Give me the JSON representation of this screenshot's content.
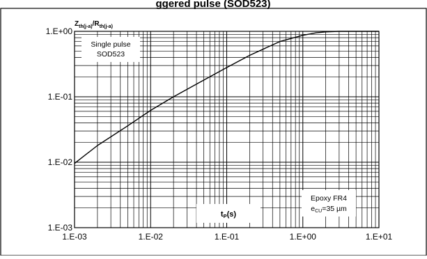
{
  "figure": {
    "top_heading": "ggered pulse (SOD523)",
    "panel_label": "Z",
    "panel_label_sub_1": "th(j-a)",
    "panel_label_mid": "/R",
    "panel_label_sub_2": "th(j-a)"
  },
  "chart_data": {
    "type": "line",
    "title": "",
    "xlabel_main": "t",
    "xlabel_sub": "P",
    "xlabel_unit": "(s)",
    "x_scale": "log",
    "y_scale": "log",
    "xlim": [
      0.001,
      10
    ],
    "ylim": [
      0.001,
      1
    ],
    "x_ticks": [
      {
        "value": 0.001,
        "label": "1.E-03"
      },
      {
        "value": 0.01,
        "label": "1.E-02"
      },
      {
        "value": 0.1,
        "label": "1.E-01"
      },
      {
        "value": 1,
        "label": "1.E+00"
      },
      {
        "value": 10,
        "label": "1.E+01"
      }
    ],
    "y_ticks": [
      {
        "value": 0.001,
        "label": "1.E-03"
      },
      {
        "value": 0.01,
        "label": "1.E-02"
      },
      {
        "value": 0.1,
        "label": "1.E-01"
      },
      {
        "value": 1,
        "label": "1.E+00"
      }
    ],
    "grid": true,
    "series": [
      {
        "color": "#000000",
        "points": [
          {
            "x": 0.001,
            "y": 0.0096
          },
          {
            "x": 0.002,
            "y": 0.018
          },
          {
            "x": 0.005,
            "y": 0.036
          },
          {
            "x": 0.01,
            "y": 0.062
          },
          {
            "x": 0.02,
            "y": 0.1
          },
          {
            "x": 0.05,
            "y": 0.18
          },
          {
            "x": 0.1,
            "y": 0.28
          },
          {
            "x": 0.2,
            "y": 0.43
          },
          {
            "x": 0.5,
            "y": 0.7
          },
          {
            "x": 1,
            "y": 0.87
          },
          {
            "x": 1.5,
            "y": 0.95
          },
          {
            "x": 2,
            "y": 0.98
          },
          {
            "x": 3,
            "y": 1.0
          },
          {
            "x": 10,
            "y": 1.0
          }
        ]
      }
    ],
    "annotations": {
      "top_left": [
        "Single pulse",
        "SOD523"
      ],
      "bottom_right_line1": "Epoxy FR4",
      "bottom_right_line2_main": "e",
      "bottom_right_line2_sub": "CU",
      "bottom_right_line2_rest": "=35 µm"
    }
  }
}
